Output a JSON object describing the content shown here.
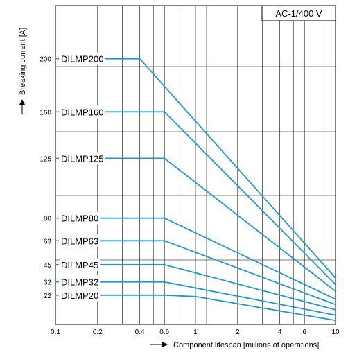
{
  "chart_data": {
    "type": "line",
    "condition_label": "AC-1/400 V",
    "xlabel": "Component lifespan [millions of operations]",
    "ylabel": "Breaking current  [A]",
    "x_scale": "log",
    "xlim": [
      0.1,
      10
    ],
    "ylim": [
      0,
      240
    ],
    "x_tick_labels": [
      {
        "value": 0.1,
        "label": "0.1"
      },
      {
        "value": 0.2,
        "label": "0.2"
      },
      {
        "value": 0.4,
        "label": "0.4"
      },
      {
        "value": 0.6,
        "label": "0.6"
      },
      {
        "value": 1,
        "label": "1"
      },
      {
        "value": 2,
        "label": "2"
      },
      {
        "value": 4,
        "label": "4"
      },
      {
        "value": 6,
        "label": "6"
      },
      {
        "value": 10,
        "label": "10"
      }
    ],
    "y_tick_labels": [
      {
        "value": 200,
        "label": "200"
      },
      {
        "value": 160,
        "label": "160"
      },
      {
        "value": 125,
        "label": "125"
      },
      {
        "value": 80,
        "label": "80"
      },
      {
        "value": 63,
        "label": "63"
      },
      {
        "value": 45,
        "label": "45"
      },
      {
        "value": 32,
        "label": "32"
      },
      {
        "value": 22,
        "label": "22"
      }
    ],
    "grid": true,
    "line_color": "#1a9ad6",
    "series": [
      {
        "name": "DILMP200",
        "x": [
          0.2,
          0.4,
          10
        ],
        "y": [
          200,
          200,
          35
        ]
      },
      {
        "name": "DILMP160",
        "x": [
          0.2,
          0.6,
          10
        ],
        "y": [
          160,
          160,
          30
        ]
      },
      {
        "name": "DILMP125",
        "x": [
          0.2,
          0.6,
          10
        ],
        "y": [
          125,
          125,
          25
        ]
      },
      {
        "name": "DILMP80",
        "x": [
          0.2,
          0.6,
          10
        ],
        "y": [
          80,
          80,
          19
        ]
      },
      {
        "name": "DILMP63",
        "x": [
          0.2,
          0.6,
          10
        ],
        "y": [
          63,
          63,
          15
        ]
      },
      {
        "name": "DILMP45",
        "x": [
          0.2,
          0.6,
          10
        ],
        "y": [
          45,
          45,
          11
        ]
      },
      {
        "name": "DILMP32",
        "x": [
          0.2,
          0.6,
          10
        ],
        "y": [
          32,
          32,
          7
        ]
      },
      {
        "name": "DILMP20",
        "x": [
          0.2,
          0.6,
          1,
          10
        ],
        "y": [
          22,
          22,
          21,
          3
        ]
      }
    ]
  }
}
